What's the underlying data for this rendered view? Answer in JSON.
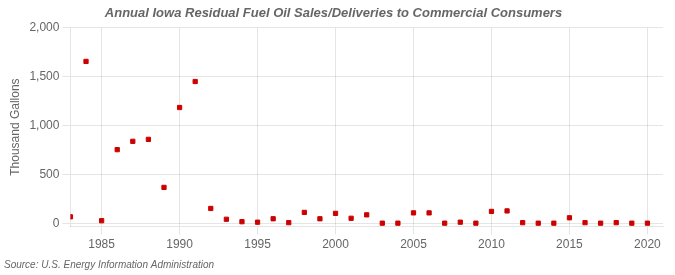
{
  "chart_data": {
    "type": "scatter",
    "title": "Annual Iowa Residual Fuel Oil Sales/Deliveries to Commercial Consumers",
    "y_label": "Thousand Gallons",
    "annotations": [
      "Source: U.S. Energy Information Administration"
    ],
    "x": [
      1983,
      1984,
      1985,
      1986,
      1987,
      1988,
      1989,
      1990,
      1991,
      1992,
      1993,
      1994,
      1995,
      1996,
      1997,
      1998,
      1999,
      2000,
      2001,
      2002,
      2003,
      2004,
      2005,
      2006,
      2007,
      2008,
      2009,
      2010,
      2011,
      2012,
      2013,
      2014,
      2015,
      2016,
      2017,
      2018,
      2019,
      2020
    ],
    "values": [
      70,
      1655,
      30,
      755,
      840,
      860,
      370,
      1185,
      1450,
      155,
      45,
      20,
      15,
      50,
      10,
      115,
      50,
      105,
      55,
      90,
      5,
      5,
      110,
      110,
      5,
      15,
      5,
      125,
      130,
      10,
      5,
      5,
      60,
      10,
      5,
      10,
      5,
      5
    ],
    "color": "#cc0000",
    "marker": "square",
    "xlim": [
      1983,
      2021
    ],
    "xticks": [
      1985,
      1990,
      1995,
      2000,
      2005,
      2010,
      2015,
      2020
    ],
    "ylim": [
      -30,
      2000
    ],
    "yticks": [
      0,
      500,
      {
        "value": 1000,
        "label": "1,000"
      },
      {
        "value": 1500,
        "label": "1,500"
      },
      {
        "value": 2000,
        "label": "2,000"
      }
    ],
    "grid": true
  }
}
